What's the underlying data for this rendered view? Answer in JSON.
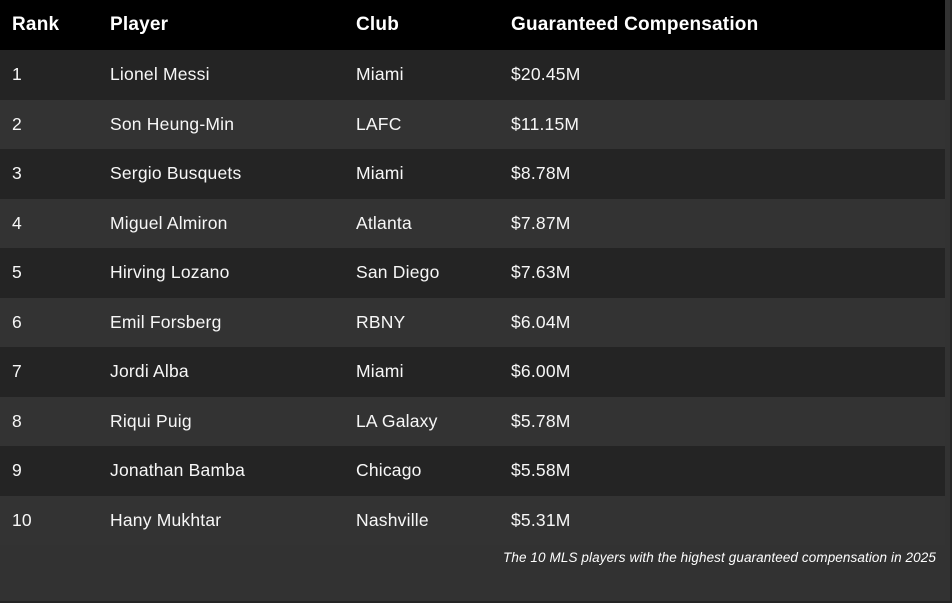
{
  "table": {
    "columns": [
      "Rank",
      "Player",
      "Club",
      "Guaranteed Compensation"
    ],
    "rows": [
      {
        "rank": "1",
        "player": "Lionel Messi",
        "club": "Miami",
        "comp": "$20.45M"
      },
      {
        "rank": "2",
        "player": "Son Heung-Min",
        "club": "LAFC",
        "comp": "$11.15M"
      },
      {
        "rank": "3",
        "player": "Sergio Busquets",
        "club": "Miami",
        "comp": "$8.78M"
      },
      {
        "rank": "4",
        "player": "Miguel Almiron",
        "club": "Atlanta",
        "comp": "$7.87M"
      },
      {
        "rank": "5",
        "player": "Hirving Lozano",
        "club": "San Diego",
        "comp": "$7.63M"
      },
      {
        "rank": "6",
        "player": "Emil Forsberg",
        "club": "RBNY",
        "comp": "$6.04M"
      },
      {
        "rank": "7",
        "player": "Jordi Alba",
        "club": "Miami",
        "comp": "$6.00M"
      },
      {
        "rank": "8",
        "player": "Riqui Puig",
        "club": "LA Galaxy",
        "comp": "$5.78M"
      },
      {
        "rank": "9",
        "player": "Jonathan Bamba",
        "club": "Chicago",
        "comp": "$5.58M"
      },
      {
        "rank": "10",
        "player": "Hany Mukhtar",
        "club": "Nashville",
        "comp": "$5.31M"
      }
    ],
    "caption": "The 10 MLS players with the highest guaranteed compensation in 2025"
  },
  "chart_data": {
    "type": "table",
    "title": "The 10 MLS players with the highest guaranteed compensation in 2025",
    "categories": [
      "Lionel Messi",
      "Son Heung-Min",
      "Sergio Busquets",
      "Miguel Almiron",
      "Hirving Lozano",
      "Emil Forsberg",
      "Jordi Alba",
      "Riqui Puig",
      "Jonathan Bamba",
      "Hany Mukhtar"
    ],
    "values": [
      20.45,
      11.15,
      8.78,
      7.87,
      7.63,
      6.04,
      6.0,
      5.78,
      5.58,
      5.31
    ],
    "ylabel": "Guaranteed Compensation ($M)"
  },
  "colors": {
    "header_bg": "#000000",
    "header_text": "#ffffff",
    "row_odd_bg": "#242424",
    "row_even_bg": "#333333",
    "page_bg": "#323232",
    "body_text": "#f7f7f7",
    "caption_text": "#fefefe"
  }
}
